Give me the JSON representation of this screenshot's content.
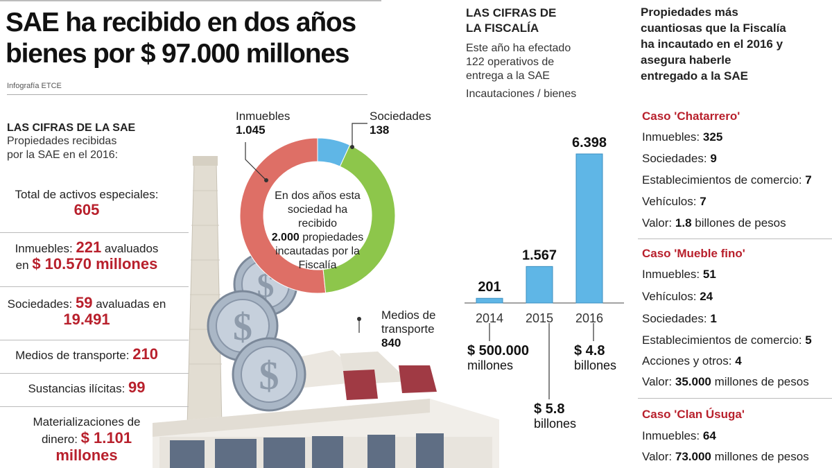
{
  "header": {
    "title_line1": "SAE ha recibido en dos años",
    "title_line2": "bienes por $ 97.000 millones",
    "credit": "Infografía ETCE"
  },
  "sae": {
    "title": "LAS CIFRAS DE LA SAE",
    "subtitle_line1": "Propiedades recibidas",
    "subtitle_line2": "por la SAE en el 2016:",
    "total_label": "Total de activos especiales:",
    "total_value": "605",
    "inmuebles_label": "Inmuebles:",
    "inmuebles_value": "221",
    "inmuebles_suffix": "avaluados",
    "inmuebles_prefix2": "en",
    "inmuebles_amount": "$ 10.570 millones",
    "sociedades_label": "Sociedades:",
    "sociedades_value": "59",
    "sociedades_suffix": "avaluadas en",
    "sociedades_amount": "19.491",
    "transporte_label": "Medios de transporte:",
    "transporte_value": "210",
    "sustancias_label": "Sustancias ilícitas:",
    "sustancias_value": "99",
    "materializaciones_line1": "Materializaciones de",
    "materializaciones_line2": "dinero:",
    "materializaciones_value": "$ 1.101",
    "materializaciones_unit": "millones"
  },
  "donut": {
    "center_line1": "En dos años esta",
    "center_line2": "sociedad ha recibido",
    "center_bold": "2.000",
    "center_line3_rest": "propiedades",
    "center_line4": "incautadas por la",
    "center_line5": "Fiscalía",
    "labels": {
      "inmuebles_name": "Inmuebles",
      "inmuebles_value": "1.045",
      "sociedades_name": "Sociedades",
      "sociedades_value": "138",
      "medios_name_line1": "Medios de",
      "medios_name_line2": "transporte",
      "medios_value": "840"
    }
  },
  "fiscalia": {
    "title_line1": "LAS CIFRAS DE",
    "title_line2": "LA FISCALÍA",
    "desc_line1": "Este año ha efectado",
    "desc_line2": "122 operativos de",
    "desc_line3": "entrega a la SAE",
    "chart_caption": "Incautaciones / bienes",
    "money_2014_line1": "$ 500.000",
    "money_2014_line2": "millones",
    "money_2015_line1": "$ 5.8",
    "money_2015_line2": "billones",
    "money_2016_line1": "$ 4.8",
    "money_2016_line2": "billones"
  },
  "casos": {
    "title_line1": "Propiedades más",
    "title_line2": "cuantiosas que la Fiscalía",
    "title_line3": "ha incautado en el 2016 y",
    "title_line4": "asegura haberle",
    "title_line5": "entregado a la SAE",
    "chatarrero": {
      "name": "Caso 'Chatarrero'",
      "rows": [
        {
          "label": "Inmuebles:",
          "value": "325",
          "suffix": ""
        },
        {
          "label": "Sociedades:",
          "value": "9",
          "suffix": ""
        },
        {
          "label": "Establecimientos de comercio:",
          "value": "7",
          "suffix": ""
        },
        {
          "label": "Vehículos:",
          "value": "7",
          "suffix": ""
        },
        {
          "label": "Valor:",
          "value": "1.8",
          "suffix": "billones de pesos"
        }
      ]
    },
    "mueble": {
      "name": "Caso 'Mueble fino'",
      "rows": [
        {
          "label": "Inmuebles:",
          "value": "51",
          "suffix": ""
        },
        {
          "label": "Vehículos:",
          "value": "24",
          "suffix": ""
        },
        {
          "label": "Sociedades:",
          "value": "1",
          "suffix": ""
        },
        {
          "label": "Establecimientos de comercio:",
          "value": "5",
          "suffix": ""
        },
        {
          "label": "Acciones y otros:",
          "value": "4",
          "suffix": ""
        },
        {
          "label": "Valor:",
          "value": "35.000",
          "suffix": "millones de pesos"
        }
      ]
    },
    "clan": {
      "name": "Caso 'Clan Úsuga'",
      "rows": [
        {
          "label": "Inmuebles:",
          "value": "64",
          "suffix": ""
        },
        {
          "label": "Valor:",
          "value": "73.000",
          "suffix": "millones de pesos"
        }
      ]
    }
  },
  "chart_data": [
    {
      "type": "pie",
      "categories": [
        "Inmuebles",
        "Sociedades",
        "Medios de transporte"
      ],
      "values": [
        1045,
        138,
        840
      ],
      "colors": [
        "#de6f66",
        "#5fb6e6",
        "#8dc64b"
      ]
    },
    {
      "type": "bar",
      "categories": [
        "2014",
        "2015",
        "2016"
      ],
      "values": [
        201,
        1567,
        6398
      ],
      "value_labels": [
        "201",
        "1.567",
        "6.398"
      ],
      "color": "#5fb6e6"
    }
  ]
}
